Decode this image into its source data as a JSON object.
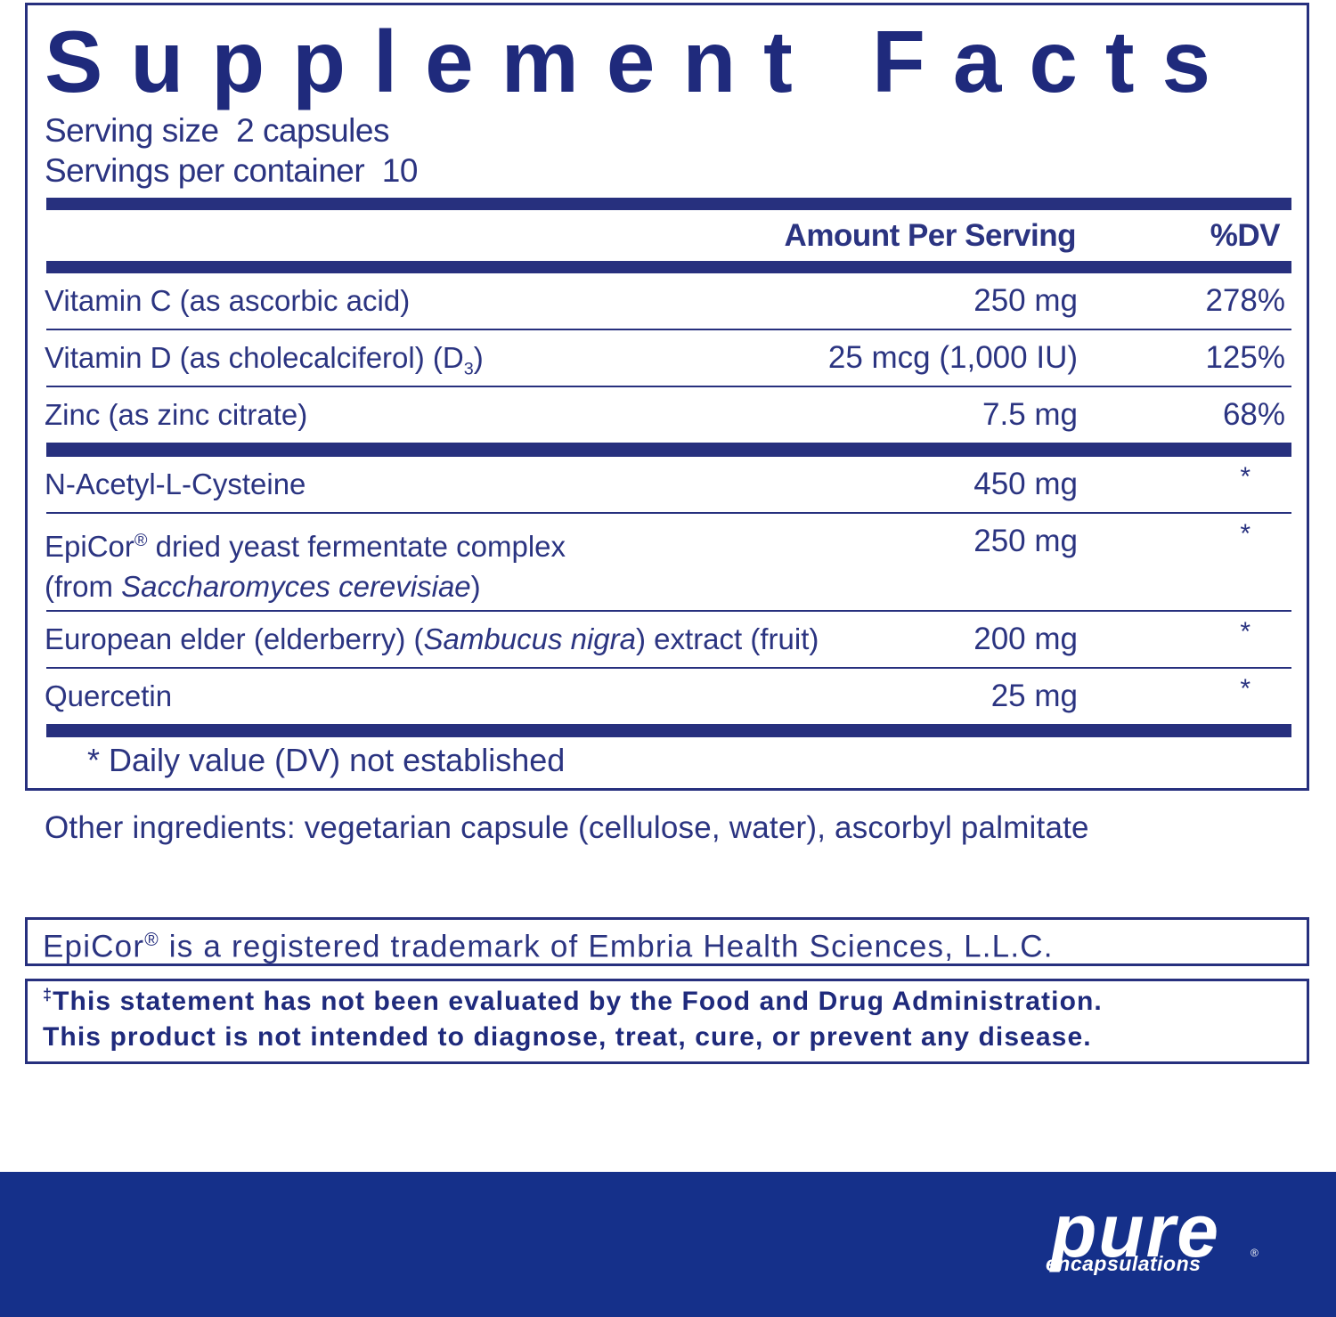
{
  "label": {
    "title": "Supplement Facts",
    "serving_size": {
      "label": "Serving size",
      "value": "2 capsules"
    },
    "servings_per_container": {
      "label": "Servings per container",
      "value": "10"
    },
    "columns": {
      "amount": "Amount Per Serving",
      "dv": "%DV"
    },
    "groups": [
      [
        {
          "name": [
            {
              "text": "Vitamin C (as ascorbic acid)"
            }
          ],
          "amount": "250 mg",
          "dv": "278%"
        },
        {
          "name": [
            {
              "text": "Vitamin D (as cholecalciferol) (D"
            },
            {
              "text": "3",
              "format": "sub"
            },
            {
              "text": ")"
            }
          ],
          "amount": "25 mcg (1,000 IU)",
          "dv": "125%"
        },
        {
          "name": [
            {
              "text": "Zinc (as zinc citrate)"
            }
          ],
          "amount": "7.5 mg",
          "dv": "68%"
        }
      ],
      [
        {
          "name": [
            {
              "text": "N-Acetyl-L-Cysteine"
            }
          ],
          "amount": "450 mg",
          "dv": "*"
        },
        {
          "name": [
            {
              "text": "EpiCor"
            },
            {
              "text": "®",
              "format": "sup"
            },
            {
              "text": " dried yeast fermentate complex"
            },
            {
              "text": "",
              "format": "break"
            },
            {
              "text": "(from "
            },
            {
              "text": "Saccharomyces cerevisiae",
              "format": "italic"
            },
            {
              "text": ")"
            }
          ],
          "amount": "250 mg",
          "dv": "*"
        },
        {
          "name": [
            {
              "text": "European elder (elderberry) ("
            },
            {
              "text": "Sambucus nigra",
              "format": "italic"
            },
            {
              "text": ") extract (fruit)"
            }
          ],
          "amount": "200 mg",
          "dv": "*"
        },
        {
          "name": [
            {
              "text": "Quercetin"
            }
          ],
          "amount": "25 mg",
          "dv": "*"
        }
      ]
    ],
    "footnote": "* Daily value (DV) not established"
  },
  "other_ingredients": "Other ingredients: vegetarian capsule (cellulose, water), ascorbyl palmitate",
  "trademark": [
    {
      "text": "EpiCor"
    },
    {
      "text": "®",
      "format": "sup"
    },
    {
      "text": " is a registered trademark of Embria Health Sciences, L.L.C."
    }
  ],
  "disclaimer": [
    [
      {
        "text": "‡",
        "format": "sup"
      },
      {
        "text": "This statement has not been evaluated by the Food and Drug Administration."
      }
    ],
    [
      {
        "text": "This product is not intended to diagnose, treat, cure, or prevent any disease."
      }
    ]
  ],
  "brand": {
    "name": "pure",
    "tagline": "encapsulations",
    "mark": "®"
  }
}
